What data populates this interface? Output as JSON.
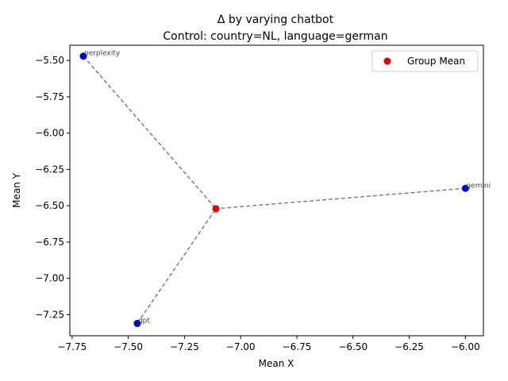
{
  "chart_data": {
    "type": "scatter",
    "title": "Δ by varying chatbot",
    "subtitle": "Control: country=NL, language=german",
    "xlabel": "Mean X",
    "ylabel": "Mean Y",
    "xlim": [
      -7.76,
      -5.92
    ],
    "ylim": [
      -7.395,
      -5.395
    ],
    "xticks": [
      -7.75,
      -7.5,
      -7.25,
      -7.0,
      -6.75,
      -6.5,
      -6.25,
      -6.0
    ],
    "yticks": [
      -5.5,
      -5.75,
      -6.0,
      -6.25,
      -6.5,
      -6.75,
      -7.0,
      -7.25
    ],
    "xtick_labels": [
      "−7.75",
      "−7.50",
      "−7.25",
      "−7.00",
      "−6.75",
      "−6.50",
      "−6.25",
      "−6.00"
    ],
    "ytick_labels": [
      "−5.50",
      "−5.75",
      "−6.00",
      "−6.25",
      "−6.50",
      "−6.75",
      "−7.00",
      "−7.25"
    ],
    "grid": false,
    "legend_position": "top-right",
    "points": [
      {
        "label": "perplexity",
        "x": -7.7,
        "y": -5.47
      },
      {
        "label": "gemini",
        "x": -6.0,
        "y": -6.38
      },
      {
        "label": "gpt",
        "x": -7.46,
        "y": -7.31
      }
    ],
    "group_mean": {
      "name": "Group Mean",
      "x": -7.11,
      "y": -6.52
    },
    "colors": {
      "points": "#0000cd",
      "group_mean": "#e00000",
      "lines": "#7f7f7f"
    }
  }
}
